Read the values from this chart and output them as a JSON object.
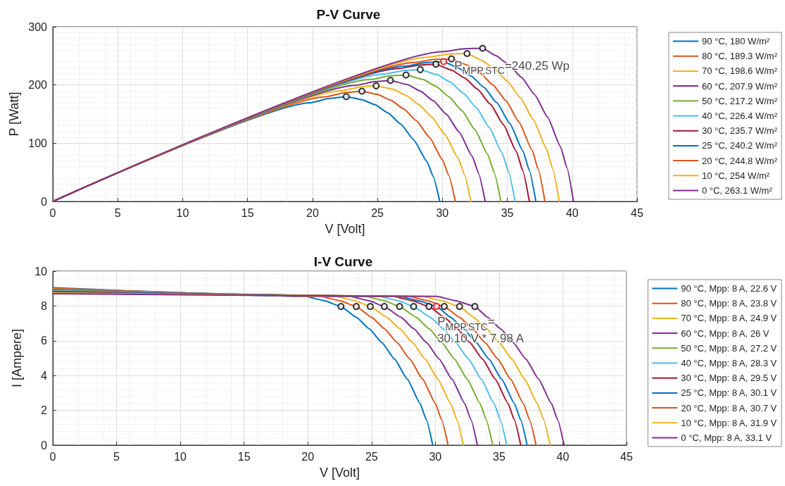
{
  "chart_data": [
    {
      "type": "line",
      "title": "P-V Curve",
      "xlabel": "V [Volt]",
      "ylabel": "P [Watt]",
      "xlim": [
        0,
        45
      ],
      "xticks": [
        0,
        5,
        10,
        15,
        20,
        25,
        30,
        35,
        40,
        45
      ],
      "ylim": [
        0,
        300
      ],
      "yticks": [
        0,
        100,
        200,
        300
      ],
      "grid": true,
      "legend": "right",
      "marker": "none",
      "annotations": [
        {
          "text": "P$_{MPP,STC}$=240.25 Wp",
          "x": 30.1,
          "y": 240.2
        }
      ],
      "series": [
        {
          "name": "90 °C, 180 W/m²",
          "color": "#0072bd",
          "x": [
            0,
            19.8,
            21.3,
            22.6,
            23.8,
            24.8,
            25.8,
            26.8,
            27.8,
            28.8,
            29.3,
            29.8
          ],
          "values": [
            0,
            169.3,
            176.8,
            180,
            174.9,
            166.2,
            152.2,
            132.7,
            105.6,
            69.1,
            42.5,
            0
          ]
        },
        {
          "name": "80 °C, 189.3 W/m²",
          "color": "#d95319",
          "x": [
            0,
            21.0,
            22.5,
            23.8,
            25.0,
            26.0,
            27.0,
            28.0,
            29.0,
            30.0,
            30.5,
            31.0
          ],
          "values": [
            0,
            179.6,
            186.8,
            189.3,
            183.8,
            174.2,
            159.3,
            138.6,
            110.2,
            72,
            44.2,
            0
          ]
        },
        {
          "name": "70 °C, 198.6 W/m²",
          "color": "#edb120",
          "x": [
            0,
            22.2,
            23.7,
            24.9,
            26.2,
            27.2,
            28.2,
            29.2,
            30.2,
            31.2,
            31.7,
            32.2
          ],
          "values": [
            0,
            189.8,
            196.7,
            198.6,
            192.6,
            182.2,
            166.4,
            144.5,
            114.8,
            74.9,
            46.0,
            0
          ]
        },
        {
          "name": "60 °C, 207.9 W/m²",
          "color": "#7e2f8e",
          "x": [
            0,
            23.3,
            24.8,
            26.0,
            27.3,
            28.3,
            29.3,
            30.3,
            31.3,
            32.3,
            32.8,
            33.3
          ],
          "values": [
            0,
            199.2,
            205.8,
            207.9,
            200.7,
            189.6,
            172.9,
            150.0,
            118.9,
            77.5,
            47.6,
            0
          ]
        },
        {
          "name": "50 °C, 217.2 W/m²",
          "color": "#77ac30",
          "x": [
            0,
            24.5,
            26.0,
            27.2,
            28.5,
            29.5,
            30.5,
            31.5,
            32.5,
            33.5,
            34.0,
            34.5
          ],
          "values": [
            0,
            209.5,
            215.8,
            217.2,
            209.5,
            197.7,
            180.0,
            155.9,
            123.5,
            80.4,
            49.3,
            0
          ]
        },
        {
          "name": "40 °C, 226.4 W/m²",
          "color": "#4dbeee",
          "x": [
            0,
            25.6,
            27.1,
            28.3,
            29.6,
            30.6,
            31.6,
            32.6,
            33.6,
            34.6,
            35.1,
            35.6
          ],
          "values": [
            0,
            218.9,
            224.9,
            226.4,
            217.6,
            205.0,
            186.4,
            161.4,
            127.7,
            83.0,
            50.9,
            0
          ]
        },
        {
          "name": "30 °C, 235.7 W/m²",
          "color": "#a2142f",
          "x": [
            0,
            26.7,
            28.2,
            29.5,
            30.7,
            31.7,
            32.7,
            33.7,
            34.7,
            35.7,
            36.2,
            36.7
          ],
          "values": [
            0,
            228.3,
            234.1,
            235.7,
            225.6,
            212.4,
            192.9,
            166.8,
            131.9,
            85.7,
            52.5,
            0
          ]
        },
        {
          "name": "25 °C, 240.2 W/m²",
          "color": "#0072bd",
          "x": [
            0,
            27.2,
            28.7,
            30.1,
            31.2,
            32.2,
            33.2,
            34.2,
            35.2,
            36.2,
            36.7,
            37.2
          ],
          "values": [
            0,
            232.6,
            238.2,
            240.2,
            229.3,
            215.7,
            195.9,
            169.3,
            133.8,
            86.9,
            53.2,
            0
          ]
        },
        {
          "name": "20 °C, 244.8 W/m²",
          "color": "#d95319",
          "x": [
            0,
            27.9,
            29.4,
            30.7,
            31.9,
            32.9,
            33.9,
            34.9,
            35.9,
            36.9,
            37.4,
            37.9
          ],
          "values": [
            0,
            238.5,
            244.0,
            244.8,
            234.5,
            220.4,
            200.0,
            172.8,
            136.4,
            88.6,
            54.2,
            0
          ]
        },
        {
          "name": "10 °C, 254 W/m²",
          "color": "#edb120",
          "x": [
            0,
            29.0,
            30.5,
            31.9,
            33.0,
            34.0,
            35.0,
            36.0,
            37.0,
            38.0,
            38.5,
            39.0
          ],
          "values": [
            0,
            248.0,
            253.2,
            254,
            242.6,
            227.8,
            206.5,
            178.2,
            140.6,
            91.2,
            55.8,
            0
          ]
        },
        {
          "name": "0 °C, 263.1 W/m²",
          "color": "#7e2f8e",
          "x": [
            0,
            30.1,
            31.6,
            33.1,
            34.1,
            35.1,
            36.1,
            37.1,
            38.1,
            39.1,
            39.6,
            40.1
          ],
          "values": [
            0,
            257.4,
            262.3,
            263.1,
            250.6,
            235.2,
            213.0,
            183.6,
            144.8,
            93.8,
            57.4,
            0
          ]
        },
        {
          "type": "scatter",
          "marker": "circle",
          "color": "#000000",
          "x": [
            22.6,
            23.8,
            24.9,
            26.0,
            27.2,
            28.3,
            29.5,
            30.7,
            31.9,
            33.1
          ],
          "values": [
            180,
            189.3,
            198.6,
            207.9,
            217.2,
            226.4,
            235.7,
            244.8,
            254,
            263.1
          ]
        },
        {
          "type": "scatter",
          "marker": "circle",
          "color": "#ff0000",
          "x": [
            30.1
          ],
          "values": [
            240.2
          ]
        }
      ]
    },
    {
      "type": "line",
      "title": "I-V Curve",
      "xlabel": "V [Volt]",
      "ylabel": "I [Ampere]",
      "xlim": [
        0,
        45
      ],
      "xticks": [
        0,
        5,
        10,
        15,
        20,
        25,
        30,
        35,
        40,
        45
      ],
      "ylim": [
        0,
        10
      ],
      "yticks": [
        0,
        2,
        4,
        6,
        8,
        10
      ],
      "grid": true,
      "legend": "right",
      "marker": "none",
      "annotations": [
        {
          "text": "P$_{MPP,STC}$=\n30.10 V * 7.98 A",
          "x": 30.1,
          "y": 7.98
        }
      ],
      "series": [
        {
          "name": "90 °C, Mpp: 8 A, 22.6 V",
          "color": "#0072bd",
          "x": [
            0,
            19.8,
            21.3,
            22.6,
            23.8,
            24.8,
            25.8,
            26.8,
            27.8,
            28.8,
            29.3,
            29.8
          ],
          "values": [
            9.05,
            8.55,
            8.3,
            7.97,
            7.35,
            6.7,
            5.9,
            4.95,
            3.8,
            2.4,
            1.45,
            0
          ]
        },
        {
          "name": "80 °C, Mpp: 8 A, 23.8 V",
          "color": "#d95319",
          "x": [
            0,
            21.0,
            22.5,
            23.8,
            25.0,
            26.0,
            27.0,
            28.0,
            29.0,
            30.0,
            30.5,
            31.0
          ],
          "values": [
            9.02,
            8.55,
            8.3,
            7.97,
            7.35,
            6.7,
            5.9,
            4.95,
            3.8,
            2.4,
            1.45,
            0
          ]
        },
        {
          "name": "70 °C, Mpp: 8 A, 24.9 V",
          "color": "#edb120",
          "x": [
            0,
            22.2,
            23.7,
            24.9,
            26.2,
            27.2,
            28.2,
            29.2,
            30.2,
            31.2,
            31.7,
            32.2
          ],
          "values": [
            8.98,
            8.55,
            8.3,
            7.97,
            7.35,
            6.7,
            5.9,
            4.95,
            3.8,
            2.4,
            1.45,
            0
          ]
        },
        {
          "name": "60 °C, Mpp: 8 A, 26 V",
          "color": "#7e2f8e",
          "x": [
            0,
            23.3,
            24.8,
            26.0,
            27.3,
            28.3,
            29.3,
            30.3,
            31.3,
            32.3,
            32.8,
            33.3
          ],
          "values": [
            8.95,
            8.55,
            8.3,
            7.97,
            7.35,
            6.7,
            5.9,
            4.95,
            3.8,
            2.4,
            1.45,
            0
          ]
        },
        {
          "name": "50 °C, Mpp: 8 A, 27.2 V",
          "color": "#77ac30",
          "x": [
            0,
            24.5,
            26.0,
            27.2,
            28.5,
            29.5,
            30.5,
            31.5,
            32.5,
            33.5,
            34.0,
            34.5
          ],
          "values": [
            8.91,
            8.55,
            8.3,
            7.97,
            7.35,
            6.7,
            5.9,
            4.95,
            3.8,
            2.4,
            1.45,
            0
          ]
        },
        {
          "name": "40 °C, Mpp: 8 A, 28.3 V",
          "color": "#4dbeee",
          "x": [
            0,
            25.6,
            27.1,
            28.3,
            29.6,
            30.6,
            31.6,
            32.6,
            33.6,
            34.6,
            35.1,
            35.6
          ],
          "values": [
            8.88,
            8.55,
            8.3,
            7.97,
            7.35,
            6.7,
            5.9,
            4.95,
            3.8,
            2.4,
            1.45,
            0
          ]
        },
        {
          "name": "30 °C, Mpp: 8 A, 29.5 V",
          "color": "#a2142f",
          "x": [
            0,
            26.7,
            28.2,
            29.5,
            30.7,
            31.7,
            32.7,
            33.7,
            34.7,
            35.7,
            36.2,
            36.7
          ],
          "values": [
            8.84,
            8.55,
            8.3,
            7.97,
            7.35,
            6.7,
            5.9,
            4.95,
            3.8,
            2.4,
            1.45,
            0
          ]
        },
        {
          "name": "25 °C, Mpp: 8 A, 30.1 V",
          "color": "#0072bd",
          "x": [
            0,
            27.2,
            28.7,
            30.1,
            31.2,
            32.2,
            33.2,
            34.2,
            35.2,
            36.2,
            36.7,
            37.2
          ],
          "values": [
            8.81,
            8.55,
            8.3,
            7.98,
            7.35,
            6.7,
            5.9,
            4.95,
            3.8,
            2.4,
            1.45,
            0
          ]
        },
        {
          "name": "20 °C, Mpp: 8 A, 30.7 V",
          "color": "#d95319",
          "x": [
            0,
            27.9,
            29.4,
            30.7,
            31.9,
            32.9,
            33.9,
            34.9,
            35.9,
            36.9,
            37.4,
            37.9
          ],
          "values": [
            8.77,
            8.55,
            8.3,
            7.97,
            7.35,
            6.7,
            5.9,
            4.95,
            3.8,
            2.4,
            1.45,
            0
          ]
        },
        {
          "name": "10 °C, Mpp: 8 A, 31.9 V",
          "color": "#edb120",
          "x": [
            0,
            29.0,
            30.5,
            31.9,
            33.0,
            34.0,
            35.0,
            36.0,
            37.0,
            38.0,
            38.5,
            39.0
          ],
          "values": [
            8.74,
            8.55,
            8.3,
            7.97,
            7.35,
            6.7,
            5.9,
            4.95,
            3.8,
            2.4,
            1.45,
            0
          ]
        },
        {
          "name": "0 °C, Mpp: 8 A, 33.1 V",
          "color": "#7e2f8e",
          "x": [
            0,
            30.1,
            31.6,
            33.1,
            34.1,
            35.1,
            36.1,
            37.1,
            38.1,
            39.1,
            39.6,
            40.1
          ],
          "values": [
            8.7,
            8.55,
            8.3,
            7.97,
            7.35,
            6.7,
            5.9,
            4.95,
            3.8,
            2.4,
            1.45,
            0
          ]
        },
        {
          "type": "scatter",
          "marker": "circle",
          "color": "#000000",
          "x": [
            22.6,
            23.8,
            24.9,
            26.0,
            27.2,
            28.3,
            29.5,
            30.7,
            31.9,
            33.1
          ],
          "values": [
            7.97,
            7.97,
            7.97,
            7.97,
            7.97,
            7.97,
            7.97,
            7.97,
            7.97,
            7.97
          ]
        },
        {
          "type": "scatter",
          "marker": "circle",
          "color": "#ff0000",
          "x": [
            30.1
          ],
          "values": [
            7.98
          ]
        }
      ]
    }
  ]
}
